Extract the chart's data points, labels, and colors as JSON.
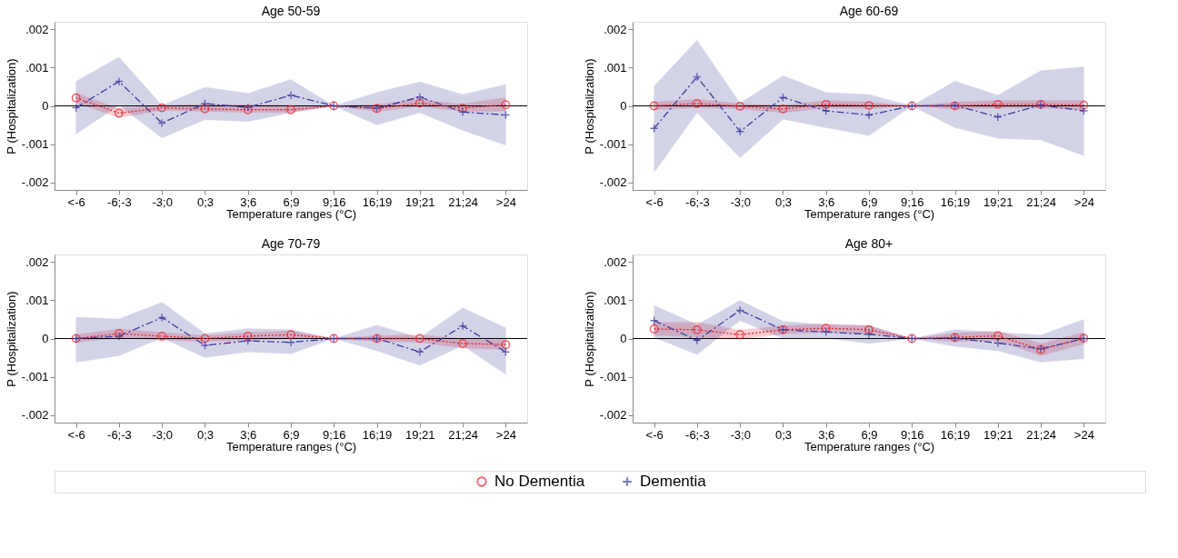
{
  "chart_data": [
    {
      "type": "line",
      "title": "Age 50-59",
      "xlabel": "Temperature ranges (°C)",
      "ylabel": "P (Hospitalization)",
      "legend": "bottom",
      "categories": [
        "<-6",
        "-6;-3",
        "-3;0",
        "0;3",
        "3;6",
        "6;9",
        "9;16",
        "16;19",
        "19;21",
        "21;24",
        ">24"
      ],
      "ylim": [
        -0.0022,
        0.0022
      ],
      "yticks": [
        {
          "value": 0.002,
          "label": ".002"
        },
        {
          "value": 0.001,
          "label": ".001"
        },
        0,
        {
          "value": -0.001,
          "label": "-.001"
        },
        {
          "value": -0.002,
          "label": "-.002"
        }
      ],
      "grid": false,
      "ref_lines": [
        {
          "axis": "y",
          "value": 0,
          "color": "#000000"
        }
      ],
      "series": [
        {
          "name": "No Dementia",
          "color": "#e8202a",
          "marker": "circle",
          "line_style": "dotted",
          "values": [
            0.00021,
            -0.00019,
            -5e-05,
            -8e-05,
            -0.0001,
            -0.0001,
            0,
            -7e-05,
            7e-05,
            -6e-05,
            3e-05
          ],
          "lower": [
            8e-05,
            -0.00031,
            -0.00012,
            -0.00015,
            -0.00017,
            -0.00017,
            0,
            -0.00015,
            -2e-05,
            -0.00014,
            -0.00014
          ],
          "upper": [
            0.00034,
            -7e-05,
            2e-05,
            4e-05,
            3e-05,
            2e-05,
            0,
            4e-05,
            0.00016,
            5e-05,
            0.00022
          ]
        },
        {
          "name": "Dementia",
          "color": "#3c3c9c",
          "marker": "cross",
          "line_style": "dashed",
          "values": [
            -5e-05,
            0.00064,
            -0.00045,
            6e-05,
            -4e-05,
            0.00028,
            0,
            -6e-05,
            0.00023,
            -0.00016,
            -0.00024
          ],
          "lower": [
            -0.00074,
            1e-05,
            -0.00084,
            -0.00036,
            -0.00041,
            -0.00018,
            0,
            -0.0005,
            -0.00018,
            -0.00064,
            -0.00103
          ],
          "upper": [
            0.00064,
            0.00128,
            1e-05,
            0.00049,
            0.00033,
            0.00069,
            0,
            0.00035,
            0.00063,
            0.0003,
            0.00056
          ]
        }
      ]
    },
    {
      "type": "line",
      "title": "Age 60-69",
      "xlabel": "Temperature ranges (°C)",
      "ylabel": "P (Hospitalization)",
      "legend": "bottom",
      "categories": [
        "<-6",
        "-6;-3",
        "-3;0",
        "0;3",
        "3;6",
        "6;9",
        "9;16",
        "16;19",
        "19;21",
        "21;24",
        ">24"
      ],
      "ylim": [
        -0.0022,
        0.0022
      ],
      "yticks": [
        {
          "value": 0.002,
          "label": ".002"
        },
        {
          "value": 0.001,
          "label": ".001"
        },
        0,
        {
          "value": -0.001,
          "label": "-.001"
        },
        {
          "value": -0.002,
          "label": "-.002"
        }
      ],
      "grid": false,
      "ref_lines": [
        {
          "axis": "y",
          "value": 0,
          "color": "#000000"
        }
      ],
      "series": [
        {
          "name": "No Dementia",
          "color": "#e8202a",
          "marker": "circle",
          "line_style": "dotted",
          "values": [
            0,
            6e-05,
            -1e-05,
            -8e-05,
            4e-05,
            1e-05,
            0,
            0,
            4e-05,
            4e-05,
            2e-05
          ],
          "lower": [
            -0.0001,
            -5e-05,
            -8e-05,
            -0.00018,
            -6e-05,
            -8e-05,
            0,
            -9e-05,
            -6e-05,
            -6e-05,
            -0.0001
          ],
          "upper": [
            0.0001,
            0.00017,
            6e-05,
            2e-05,
            0.00014,
            0.0001,
            0,
            0.0001,
            0.00014,
            0.00014,
            0.00014
          ]
        },
        {
          "name": "Dementia",
          "color": "#3c3c9c",
          "marker": "cross",
          "line_style": "dashed",
          "values": [
            -0.00059,
            0.00076,
            -0.00067,
            0.00022,
            -0.00013,
            -0.00024,
            0,
            1e-05,
            -0.00029,
            2e-05,
            -0.00013
          ],
          "lower": [
            -0.00174,
            -0.00018,
            -0.00136,
            -0.00035,
            -0.00057,
            -0.00078,
            0,
            -0.00057,
            -0.00085,
            -0.00089,
            -0.0013
          ],
          "upper": [
            0.00052,
            0.00172,
            7e-05,
            0.00079,
            0.00035,
            0.0003,
            0,
            0.00065,
            0.00028,
            0.00092,
            0.00102
          ]
        }
      ]
    },
    {
      "type": "line",
      "title": "Age 70-79",
      "xlabel": "Temperature ranges (°C)",
      "ylabel": "P (Hospitalization)",
      "legend": "bottom",
      "categories": [
        "<-6",
        "-6;-3",
        "-3;0",
        "0;3",
        "3;6",
        "6;9",
        "9;16",
        "16;19",
        "19;21",
        "21;24",
        ">24"
      ],
      "ylim": [
        -0.0022,
        0.0022
      ],
      "yticks": [
        {
          "value": 0.002,
          "label": ".002"
        },
        {
          "value": 0.001,
          "label": ".001"
        },
        0,
        {
          "value": -0.001,
          "label": "-.001"
        },
        {
          "value": -0.002,
          "label": "-.002"
        }
      ],
      "grid": false,
      "ref_lines": [
        {
          "axis": "y",
          "value": 0,
          "color": "#000000"
        }
      ],
      "series": [
        {
          "name": "No Dementia",
          "color": "#e8202a",
          "marker": "circle",
          "line_style": "dotted",
          "values": [
            0,
            0.00013,
            6e-05,
            0,
            6e-05,
            0.0001,
            0,
            0,
            0,
            -0.00013,
            -0.00016
          ],
          "lower": [
            -0.0001,
            1e-05,
            -4e-05,
            -8e-05,
            -4e-05,
            0,
            0,
            -8e-05,
            -0.0001,
            -0.00025,
            -0.00029
          ],
          "upper": [
            0.0001,
            0.00025,
            0.00016,
            8e-05,
            0.00016,
            0.0002,
            0,
            8e-05,
            0.0001,
            -1e-05,
            -3e-05
          ]
        },
        {
          "name": "Dementia",
          "color": "#3c3c9c",
          "marker": "cross",
          "line_style": "dashed",
          "values": [
            0,
            6e-05,
            0.00055,
            -0.00018,
            -6e-05,
            -0.0001,
            0,
            0,
            -0.00035,
            0.00033,
            -0.00035
          ],
          "lower": [
            -0.00062,
            -0.00045,
            2e-05,
            -0.0005,
            -0.00035,
            -0.0004,
            0,
            -0.00032,
            -0.0007,
            -0.00019,
            -0.00094
          ],
          "upper": [
            0.00056,
            0.00051,
            0.00095,
            0.00013,
            0.00026,
            0.00023,
            0,
            0.00035,
            2e-05,
            0.0008,
            0.00028
          ]
        }
      ]
    },
    {
      "type": "line",
      "title": "Age 80+",
      "xlabel": "Temperature ranges (°C)",
      "ylabel": "P (Hospitalization)",
      "categories": [
        "<-6",
        "-6;-3",
        "-3;0",
        "0;3",
        "3;6",
        "6;9",
        "9;16",
        "16;19",
        "19;21",
        "21;24",
        ">24"
      ],
      "ylim": [
        -0.0022,
        0.0022
      ],
      "yticks": [
        {
          "value": 0.002,
          "label": ".002"
        },
        {
          "value": 0.001,
          "label": ".001"
        },
        0,
        {
          "value": -0.001,
          "label": "-.001"
        },
        {
          "value": -0.002,
          "label": "-.002"
        }
      ],
      "grid": false,
      "legend": "bottom",
      "ref_lines": [
        {
          "axis": "y",
          "value": 0,
          "color": "#000000"
        }
      ],
      "series": [
        {
          "name": "No Dementia",
          "color": "#e8202a",
          "marker": "circle",
          "line_style": "dotted",
          "values": [
            0.00025,
            0.00023,
            0.0001,
            0.00023,
            0.00027,
            0.00023,
            0,
            3e-05,
            7e-05,
            -0.00029,
            1e-05
          ],
          "lower": [
            8e-05,
            3e-05,
            -2e-05,
            0.00012,
            0.00016,
            0.00012,
            0,
            -8e-05,
            -6e-05,
            -0.00045,
            -0.00014
          ],
          "upper": [
            0.00042,
            0.00043,
            0.00022,
            0.00034,
            0.00038,
            0.00034,
            0,
            0.00014,
            0.0002,
            -0.00013,
            0.00016
          ]
        },
        {
          "name": "Dementia",
          "color": "#3c3c9c",
          "marker": "cross",
          "line_style": "dashed",
          "values": [
            0.00047,
            -5e-05,
            0.00074,
            0.00023,
            0.00017,
            0.00011,
            0,
            1e-05,
            -0.00012,
            -0.00027,
            0
          ],
          "lower": [
            3e-05,
            -0.00042,
            0.00047,
            0,
            1e-05,
            -0.00013,
            0,
            -0.00021,
            -0.00032,
            -0.00062,
            -0.00053
          ],
          "upper": [
            0.00087,
            0.00036,
            0.001,
            0.00045,
            0.00036,
            0.00034,
            0,
            0.00023,
            0.00016,
            9e-05,
            0.0005
          ]
        }
      ]
    }
  ]
}
